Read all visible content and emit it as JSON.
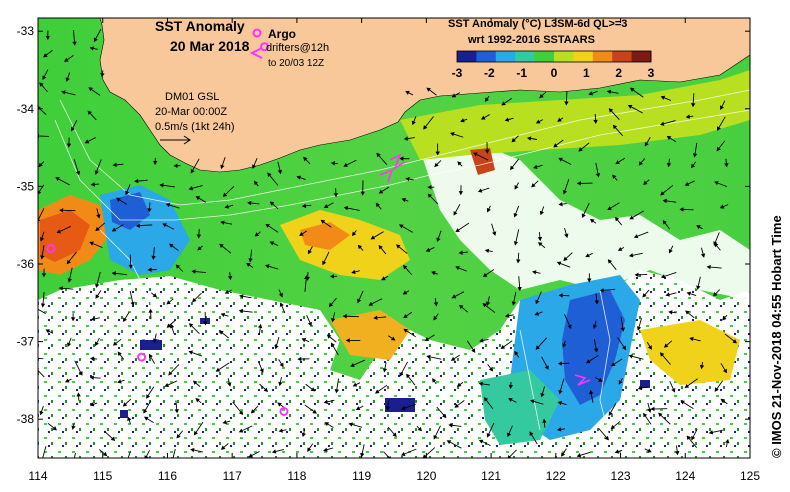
{
  "title": {
    "line1": "SST Anomaly",
    "line2": "20 Mar 2018"
  },
  "argo": {
    "label": "Argo",
    "drifters_line1": "drifters@12h",
    "drifters_line2": "to 20/03 12Z"
  },
  "model": {
    "line1": "DM01 GSL",
    "line2": "20-Mar 00:00Z",
    "line3": "0.5m/s (1kt 24h)"
  },
  "colorbar": {
    "title1": "SST Anomaly (°C) L3SM-6d QL>=3",
    "title2": "wrt 1992-2016 SSTAARS",
    "ticks": [
      "-3",
      "-2",
      "-1",
      "0",
      "1",
      "2",
      "3"
    ],
    "colors": [
      "#1a1f8f",
      "#1f5fd6",
      "#2aa8e8",
      "#35c9a0",
      "#3fcf3a",
      "#b8e020",
      "#f0d21a",
      "#f28a18",
      "#c8421a",
      "#7a1a10"
    ]
  },
  "axes": {
    "x_ticks": [
      "114",
      "115",
      "116",
      "117",
      "118",
      "119",
      "120",
      "121",
      "122",
      "123",
      "124",
      "125"
    ],
    "y_ticks": [
      "-33",
      "-34",
      "-35",
      "-36",
      "-37",
      "-38"
    ]
  },
  "credit": "© IMOS 21-Nov-2018 04:55 Hobart Time",
  "colors": {
    "land": "#f8c89a",
    "argo_marker": "#ff33ff"
  },
  "argo_floats": [
    {
      "lon": 114.2,
      "lat": -35.8
    },
    {
      "lon": 115.6,
      "lat": -37.2
    },
    {
      "lon": 117.8,
      "lat": -37.9
    },
    {
      "lon": 117.5,
      "lat": -33.2
    }
  ]
}
